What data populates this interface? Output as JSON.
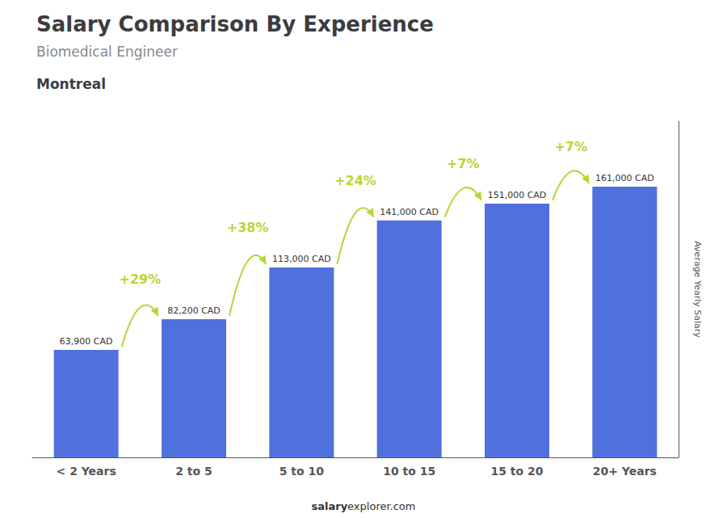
{
  "chart_data": {
    "type": "bar",
    "title": "Salary Comparison By Experience",
    "subtitle": "Biomedical Engineer",
    "annotations": [
      "Montreal",
      "salary",
      "explorer.com"
    ],
    "ylabel": "Average Yearly Salary",
    "categories": [
      "< 2 Years",
      "2 to 5",
      "5 to 10",
      "10 to 15",
      "15 to 20",
      "20+ Years"
    ],
    "values": [
      63900,
      82200,
      113000,
      141000,
      151000,
      161000
    ],
    "value_labels": [
      "63,900 CAD",
      "82,200 CAD",
      "113,000 CAD",
      "141,000 CAD",
      "151,000 CAD",
      "161,000 CAD"
    ],
    "data_labels": true,
    "pct_changes": [
      "+29%",
      "+38%",
      "+24%",
      "+7%",
      "+7%"
    ],
    "ylim": [
      0,
      200000
    ],
    "grid": false,
    "tick_labels": "x"
  }
}
